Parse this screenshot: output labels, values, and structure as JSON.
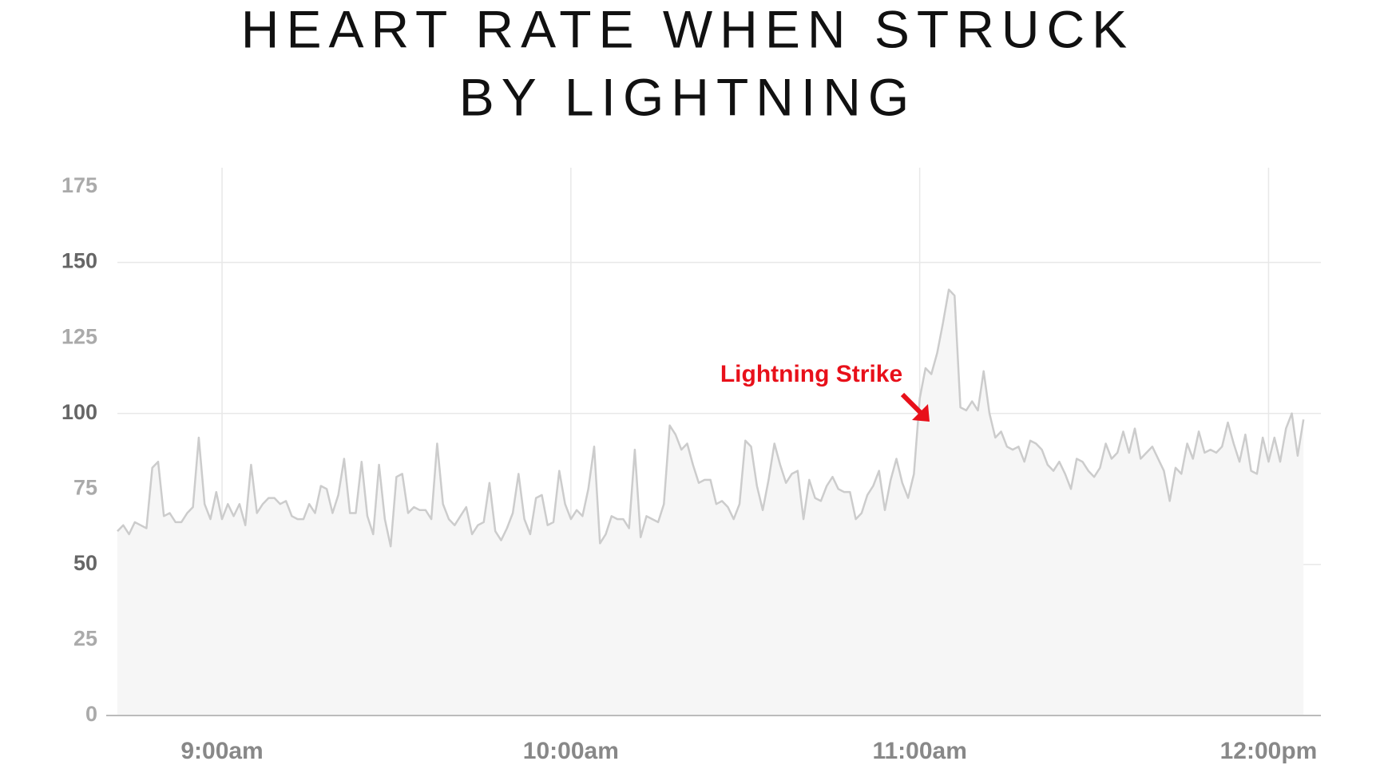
{
  "chart_data": {
    "type": "area",
    "title": [
      "HEART RATE WHEN STRUCK",
      "BY LIGHTNING"
    ],
    "annotation": "Lightning Strike",
    "x": [
      522,
      523,
      524,
      525,
      526,
      527,
      528,
      529,
      530,
      531,
      532,
      533,
      534,
      535,
      536,
      537,
      538,
      539,
      540,
      541,
      542,
      543,
      544,
      545,
      546,
      547,
      548,
      549,
      550,
      551,
      552,
      553,
      554,
      555,
      556,
      557,
      558,
      559,
      560,
      561,
      562,
      563,
      564,
      565,
      566,
      567,
      568,
      569,
      570,
      571,
      572,
      573,
      574,
      575,
      576,
      577,
      578,
      579,
      580,
      581,
      582,
      583,
      584,
      585,
      586,
      587,
      588,
      589,
      590,
      591,
      592,
      593,
      594,
      595,
      596,
      597,
      598,
      599,
      600,
      601,
      602,
      603,
      604,
      605,
      606,
      607,
      608,
      609,
      610,
      611,
      612,
      613,
      614,
      615,
      616,
      617,
      618,
      619,
      620,
      621,
      622,
      623,
      624,
      625,
      626,
      627,
      628,
      629,
      630,
      631,
      632,
      633,
      634,
      635,
      636,
      637,
      638,
      639,
      640,
      641,
      642,
      643,
      644,
      645,
      646,
      647,
      648,
      649,
      650,
      651,
      652,
      653,
      654,
      655,
      656,
      657,
      658,
      659,
      660,
      661,
      662,
      663,
      664,
      665,
      666,
      667,
      668,
      669,
      670,
      671,
      672,
      673,
      674,
      675,
      676,
      677,
      678,
      679,
      680,
      681,
      682,
      683,
      684,
      685,
      686,
      687,
      688,
      689,
      690,
      691,
      692,
      693,
      694,
      695,
      696,
      697,
      698,
      699,
      700,
      701,
      702,
      703,
      704,
      705,
      706,
      707,
      708,
      709,
      710,
      711,
      712,
      713,
      714,
      715,
      716,
      717,
      718,
      719,
      720,
      721,
      722,
      723,
      724,
      725,
      726
    ],
    "values": [
      61,
      63,
      60,
      64,
      63,
      62,
      82,
      84,
      66,
      67,
      64,
      64,
      67,
      69,
      92,
      70,
      65,
      74,
      65,
      70,
      66,
      70,
      63,
      83,
      67,
      70,
      72,
      72,
      70,
      71,
      66,
      65,
      65,
      70,
      67,
      76,
      75,
      67,
      73,
      85,
      67,
      67,
      84,
      66,
      60,
      83,
      65,
      56,
      79,
      80,
      67,
      69,
      68,
      68,
      65,
      90,
      70,
      65,
      63,
      66,
      69,
      60,
      63,
      64,
      77,
      61,
      58,
      62,
      67,
      80,
      65,
      60,
      72,
      73,
      63,
      64,
      81,
      70,
      65,
      68,
      66,
      75,
      89,
      57,
      60,
      66,
      65,
      65,
      62,
      88,
      59,
      66,
      65,
      64,
      70,
      96,
      93,
      88,
      90,
      83,
      77,
      78,
      78,
      70,
      71,
      69,
      65,
      70,
      91,
      89,
      76,
      68,
      78,
      90,
      83,
      77,
      80,
      81,
      65,
      78,
      72,
      71,
      76,
      79,
      75,
      74,
      74,
      65,
      67,
      73,
      76,
      81,
      68,
      78,
      85,
      77,
      72,
      80,
      105,
      115,
      113,
      120,
      130,
      141,
      139,
      102,
      101,
      104,
      101,
      114,
      100,
      92,
      94,
      89,
      88,
      89,
      84,
      91,
      90,
      88,
      83,
      81,
      84,
      80,
      75,
      85,
      84,
      81,
      79,
      82,
      90,
      85,
      87,
      94,
      87,
      95,
      85,
      87,
      89,
      85,
      81,
      71,
      82,
      80,
      90,
      85,
      94,
      87,
      88,
      87,
      89,
      97,
      90,
      84,
      93,
      81,
      80,
      92,
      84,
      92,
      84,
      95,
      100,
      86,
      98
    ],
    "line_color": "#cccccc",
    "fill_color": "#f6f6f6",
    "xlim": [
      522,
      729
    ],
    "xticks": [
      {
        "value": 540,
        "label": "9:00am"
      },
      {
        "value": 600,
        "label": "10:00am"
      },
      {
        "value": 660,
        "label": "11:00am"
      },
      {
        "value": 720,
        "label": "12:00pm"
      }
    ],
    "ylim": [
      0,
      175
    ],
    "yticks": [
      0,
      25,
      50,
      75,
      100,
      125,
      150,
      175
    ],
    "grid": true
  }
}
